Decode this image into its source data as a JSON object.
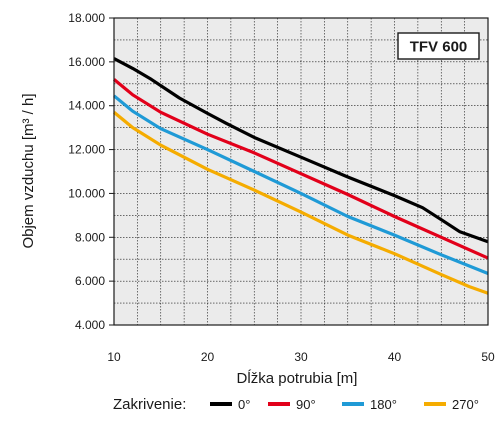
{
  "chart_data": {
    "type": "line",
    "title": "TFV 600",
    "xlabel": "Dĺžka potrubia [m]",
    "ylabel": "Objem vzduchu [m³ / h]",
    "xlim": [
      10,
      50
    ],
    "ylim": [
      4000,
      18000
    ],
    "x_ticks": [
      "10",
      "20",
      "30",
      "40",
      "50"
    ],
    "y_ticks": [
      "4.000",
      "6.000",
      "8.000",
      "10.000",
      "12.000",
      "14.000",
      "16.000",
      "18.000"
    ],
    "grid": true,
    "legend_title": "Zakrivenie:",
    "legend_position": "bottom",
    "series": [
      {
        "name": "0°",
        "color": "#000000",
        "x": [
          10,
          12,
          14,
          17,
          20,
          22,
          25,
          30,
          35,
          40,
          43,
          45,
          47,
          50
        ],
        "y": [
          16150,
          15700,
          15200,
          14350,
          13650,
          13200,
          12550,
          11650,
          10750,
          9900,
          9350,
          8800,
          8250,
          7800
        ]
      },
      {
        "name": "90°",
        "color": "#e2001a",
        "x": [
          10,
          12,
          15,
          20,
          25,
          30,
          35,
          40,
          45,
          50
        ],
        "y": [
          15200,
          14500,
          13700,
          12700,
          11850,
          10900,
          9950,
          8950,
          8000,
          7050
        ]
      },
      {
        "name": "180°",
        "color": "#1f9ad6",
        "x": [
          10,
          12,
          15,
          20,
          25,
          30,
          35,
          40,
          45,
          50
        ],
        "y": [
          14450,
          13750,
          12950,
          12000,
          11000,
          10000,
          8950,
          8100,
          7200,
          6350
        ]
      },
      {
        "name": "270°",
        "color": "#f5ac00",
        "x": [
          10,
          12,
          15,
          20,
          25,
          30,
          35,
          40,
          45,
          48,
          50
        ],
        "y": [
          13700,
          13000,
          12200,
          11100,
          10150,
          9150,
          8100,
          7250,
          6300,
          5750,
          5450
        ]
      }
    ]
  }
}
